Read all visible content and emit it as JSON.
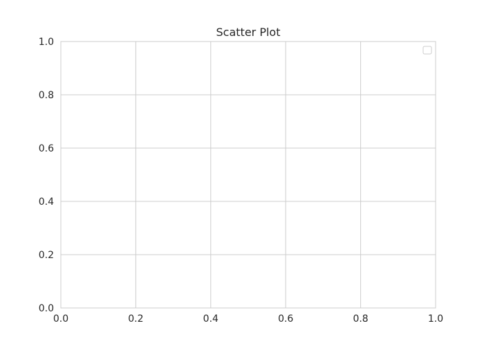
{
  "chart_data": {
    "type": "scatter",
    "title": "Scatter Plot",
    "xlabel": "",
    "ylabel": "",
    "xlim": [
      0.0,
      1.0
    ],
    "ylim": [
      0.0,
      1.0
    ],
    "x_ticks": [
      "0.0",
      "0.2",
      "0.4",
      "0.6",
      "0.8",
      "1.0"
    ],
    "y_ticks": [
      "0.0",
      "0.2",
      "0.4",
      "0.6",
      "0.8",
      "1.0"
    ],
    "series": [],
    "grid": true,
    "legend": {
      "visible": true,
      "placement": "top-right",
      "entries": []
    },
    "colors": {
      "grid": "#cccccc",
      "text": "#262626",
      "background": "#ffffff"
    }
  }
}
